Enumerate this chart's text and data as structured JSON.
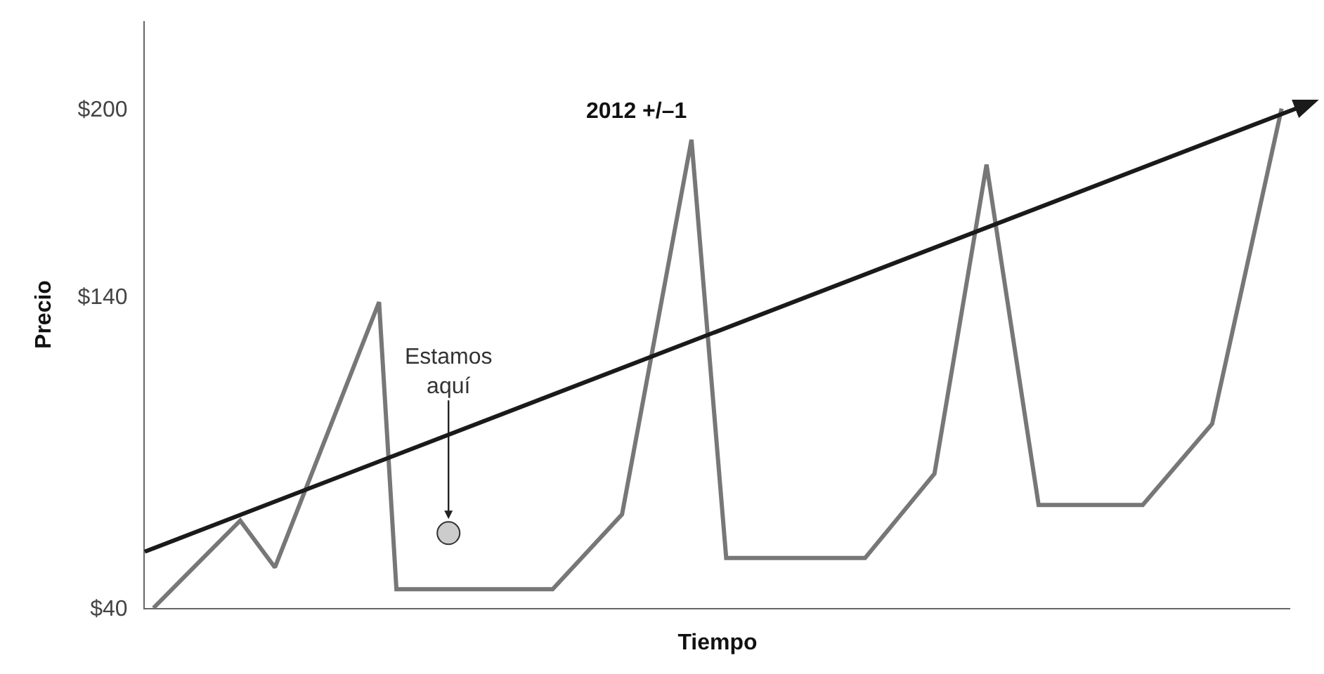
{
  "chart_data": {
    "type": "line",
    "xlabel": "Tiempo",
    "ylabel": "Precio",
    "categories": [
      null,
      null,
      null,
      null,
      null,
      null,
      null,
      null,
      null,
      null,
      null,
      null,
      null,
      null,
      null,
      null,
      null,
      null,
      null,
      null,
      null,
      null,
      null,
      null,
      null,
      null,
      null,
      null,
      null,
      null,
      null,
      null,
      null,
      null,
      null,
      null,
      null,
      null,
      null,
      null,
      null,
      null,
      null,
      null,
      null,
      null,
      null,
      null,
      null,
      null,
      null,
      null,
      null,
      null,
      null,
      null,
      null,
      null,
      null,
      null,
      null,
      null,
      null,
      null,
      null,
      null
    ],
    "ylim": [
      40,
      228
    ],
    "yticks": [
      {
        "value": 40,
        "label": "$40"
      },
      {
        "value": 140,
        "label": "$140"
      },
      {
        "value": 200,
        "label": "$200"
      }
    ],
    "tick_labels": "y",
    "grid": false,
    "series": [
      {
        "color": "#777777",
        "marker": "none",
        "values": [
          40,
          null,
          null,
          null,
          null,
          68,
          null,
          53,
          null,
          null,
          null,
          null,
          null,
          138,
          46,
          null,
          null,
          null,
          null,
          null,
          null,
          null,
          null,
          46,
          null,
          null,
          null,
          70,
          null,
          null,
          null,
          190,
          null,
          56,
          null,
          null,
          null,
          null,
          null,
          null,
          null,
          56,
          null,
          null,
          null,
          83,
          null,
          null,
          182,
          null,
          null,
          73,
          null,
          null,
          null,
          null,
          null,
          73,
          null,
          null,
          null,
          99,
          null,
          null,
          null,
          200
        ]
      },
      {
        "type": "scatter",
        "color": "#cccccc",
        "marker": "circle",
        "values": [
          null,
          null,
          null,
          null,
          null,
          null,
          null,
          null,
          null,
          null,
          null,
          null,
          null,
          null,
          null,
          null,
          null,
          64,
          null,
          null,
          null,
          null,
          null,
          null,
          null,
          null,
          null,
          null,
          null,
          null,
          null,
          null,
          null,
          null,
          null,
          null,
          null,
          null,
          null,
          null,
          null,
          null,
          null,
          null,
          null,
          null,
          null,
          null,
          null,
          null,
          null,
          null,
          null,
          null,
          null,
          null,
          null,
          null,
          null,
          null,
          null,
          null,
          null,
          null,
          null,
          null
        ]
      }
    ],
    "annotations": [
      {
        "text": "Estamos\naquí",
        "y": 64
      },
      "2012 +/–1"
    ]
  }
}
